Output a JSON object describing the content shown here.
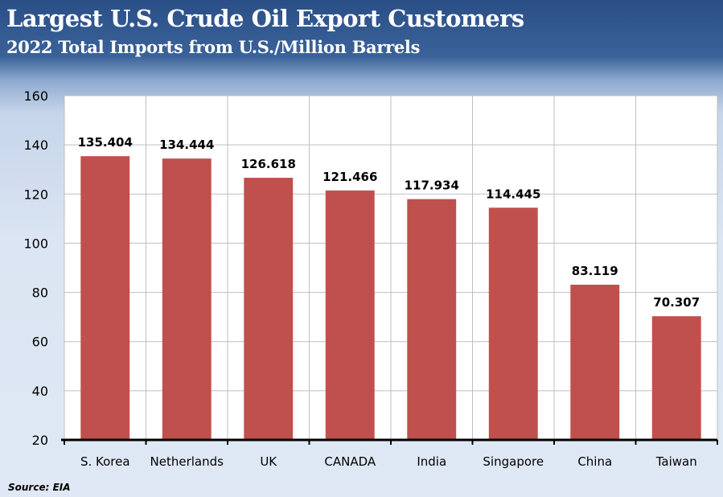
{
  "header": {
    "title": "Largest U.S. Crude Oil Export Customers",
    "subtitle": "2022 Total Imports from U.S./Million Barrels"
  },
  "source": "Source: EIA",
  "colors": {
    "bar": "#c0504d",
    "grid": "#bfbfbf",
    "axis": "#000000",
    "header_bg": "#2a4f86",
    "header_text": "#ffffff"
  },
  "chart_data": {
    "type": "bar",
    "title": "Largest U.S. Crude Oil Export Customers",
    "subtitle": "2022 Total Imports from U.S./Million Barrels",
    "categories": [
      "S. Korea",
      "Netherlands",
      "UK",
      "CANADA",
      "India",
      "Singapore",
      "China",
      "Taiwan"
    ],
    "values": [
      135.404,
      134.444,
      126.618,
      121.466,
      117.934,
      114.445,
      83.119,
      70.307
    ],
    "data_labels": [
      "135.404",
      "134.444",
      "126.618",
      "121.466",
      "117.934",
      "114.445",
      "83.119",
      "70.307"
    ],
    "ylim": [
      20,
      160
    ],
    "yticks": [
      20,
      40,
      60,
      80,
      100,
      120,
      140,
      160
    ],
    "xlabel": "",
    "ylabel": "",
    "grid": true,
    "legend": "none"
  }
}
